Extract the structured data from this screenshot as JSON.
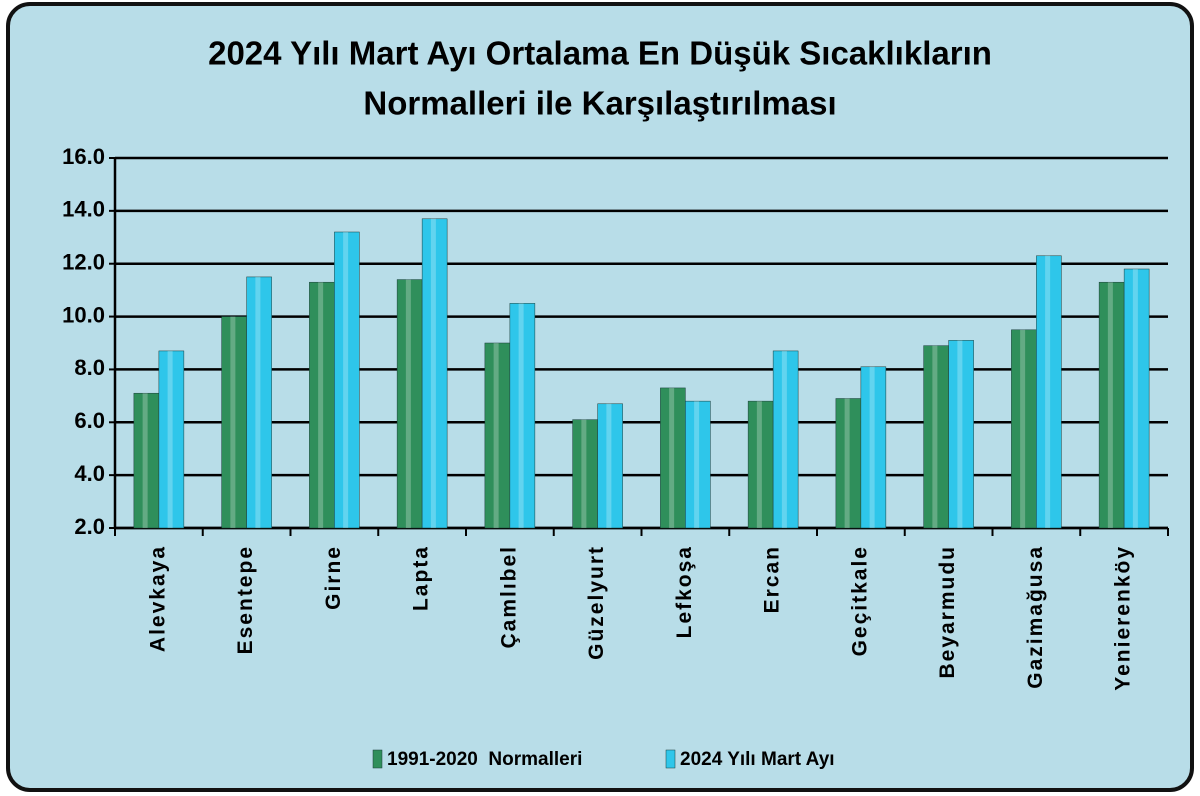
{
  "chart_data": {
    "type": "bar",
    "title": [
      "2024 Yılı Mart Ayı Ortalama En Düşük Sıcaklıkların",
      "Normalleri ile Karşılaştırılması"
    ],
    "categories": [
      "Alevkaya",
      "Esentepe",
      "Girne",
      "Lapta",
      "Çamlıbel",
      "Güzelyurt",
      "Lefkoşa",
      "Ercan",
      "Geçitkale",
      "Beyarmudu",
      "Gazimağusa",
      "Yenierenköy"
    ],
    "series": [
      {
        "name": "1991-2020  Normalleri",
        "color": "#2f8f5b",
        "values": [
          7.1,
          10.0,
          11.3,
          11.4,
          9.0,
          6.1,
          7.3,
          6.8,
          6.9,
          8.9,
          9.5,
          11.3
        ]
      },
      {
        "name": "2024 Yılı Mart Ayı",
        "color": "#2ec6ea",
        "values": [
          8.7,
          11.5,
          13.2,
          13.7,
          10.5,
          6.7,
          6.8,
          8.7,
          8.1,
          9.1,
          12.3,
          11.8
        ]
      }
    ],
    "ylim": [
      2,
      16
    ],
    "yticks": [
      {
        "value": 2,
        "label": "2.0"
      },
      {
        "value": 4,
        "label": "4.0"
      },
      {
        "value": 6,
        "label": "6.0"
      },
      {
        "value": 8,
        "label": "8.0"
      },
      {
        "value": 10,
        "label": "10.0"
      },
      {
        "value": 12,
        "label": "12.0"
      },
      {
        "value": 14,
        "label": "14.0"
      },
      {
        "value": 16,
        "label": "16.0"
      }
    ],
    "grid": true,
    "legend": "bottom"
  }
}
